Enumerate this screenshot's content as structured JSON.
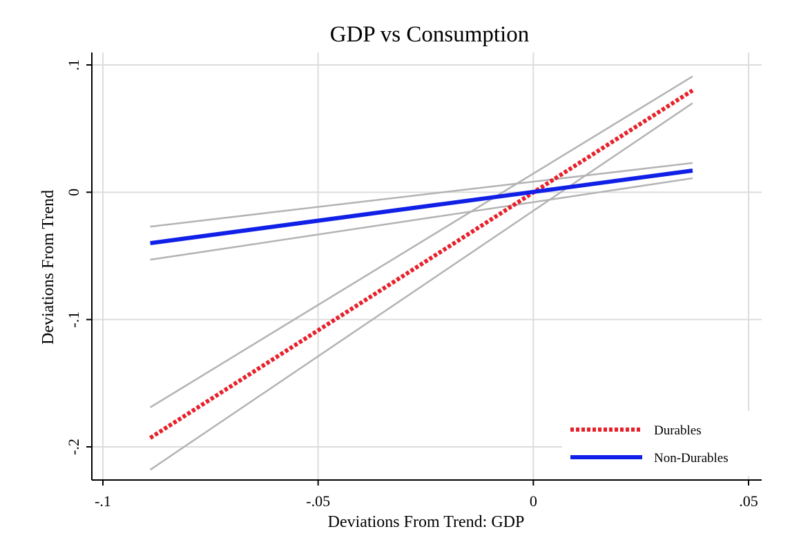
{
  "chart_data": {
    "type": "line",
    "title": "GDP vs Consumption",
    "xlabel": "Deviations From Trend: GDP",
    "ylabel": "Deviations From Trend",
    "xlim": [
      -0.1,
      0.05
    ],
    "ylim": [
      -0.22,
      0.1
    ],
    "grid": true,
    "legend_position": "bottom-right",
    "x_ticks": [
      {
        "value": -0.1,
        "label": "-.1"
      },
      {
        "value": -0.05,
        "label": "-.05"
      },
      {
        "value": 0,
        "label": "0"
      },
      {
        "value": 0.05,
        "label": ".05"
      }
    ],
    "y_ticks": [
      {
        "value": 0.1,
        "label": ".1"
      },
      {
        "value": 0,
        "label": "0"
      },
      {
        "value": -0.1,
        "label": "-.1"
      },
      {
        "value": -0.2,
        "label": "-.2"
      }
    ],
    "series": [
      {
        "name": "Durables",
        "style": "dotted",
        "color": "#e8202a",
        "x": [
          -0.089,
          0.037
        ],
        "y": [
          -0.193,
          0.08
        ],
        "ci_lower": [
          -0.218,
          0.07
        ],
        "ci_upper": [
          -0.169,
          0.091
        ]
      },
      {
        "name": "Non-Durables",
        "style": "solid",
        "color": "#1020e6",
        "x": [
          -0.089,
          0.037
        ],
        "y": [
          -0.04,
          0.017
        ],
        "ci_lower": [
          -0.053,
          0.011
        ],
        "ci_upper": [
          -0.027,
          0.023
        ]
      }
    ],
    "ci_color": "#b3b3b3"
  }
}
